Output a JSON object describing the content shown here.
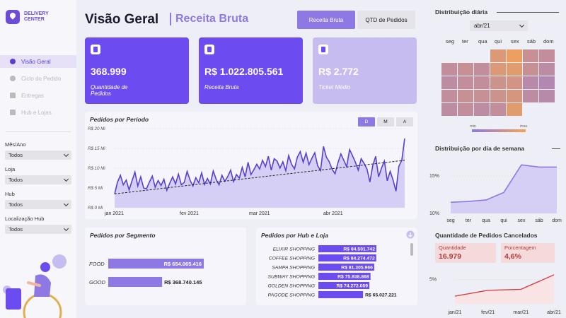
{
  "app": {
    "logo_text": "DELIVERY CENTER"
  },
  "nav": [
    {
      "label": "Visão Geral",
      "active": true
    },
    {
      "label": "Ciclo do Pedido",
      "active": false
    },
    {
      "label": "Entregas",
      "active": false
    },
    {
      "label": "Hub e Lojas",
      "active": false
    }
  ],
  "filters": [
    {
      "label": "Mês/Ano",
      "value": "Todos"
    },
    {
      "label": "Loja",
      "value": "Todos"
    },
    {
      "label": "Hub",
      "value": "Todos"
    },
    {
      "label": "Localização Hub",
      "value": "Todos"
    }
  ],
  "header": {
    "title": "Visão Geral",
    "subtitle": "Receita Bruta",
    "btn_receita": "Receita Bruta",
    "btn_qtd": "QTD de Pedidos"
  },
  "kpis": [
    {
      "value": "368.999",
      "label": "Quantidade de Pedidos"
    },
    {
      "value": "R$ 1.022.805.561",
      "label": "Receita Bruta"
    },
    {
      "value": "R$ 2.772",
      "label": "Ticket Médio"
    }
  ],
  "periodo": {
    "title": "Pedidos por Período",
    "toggles": [
      "D",
      "M",
      "A"
    ],
    "y_ticks": [
      "R$ 20 Mi",
      "R$ 15 Mi",
      "R$ 10 Mi",
      "R$ 5 Mi",
      "R$ 0 Mi"
    ],
    "x_ticks": [
      "jan 2021",
      "fev 2021",
      "mar 2021",
      "abr 2021"
    ]
  },
  "segmento": {
    "title": "Pedidos por Segmento"
  },
  "hub": {
    "title": "Pedidos por Hub e Loja"
  },
  "diaria": {
    "title": "Distribuição diária",
    "month": "abr/21",
    "weekdays": [
      "seg",
      "ter",
      "qua",
      "qui",
      "sex",
      "sáb",
      "dom"
    ],
    "legend_min": "min",
    "legend_max": "max"
  },
  "semana": {
    "title": "Distribuição por dia de semana",
    "y_ticks": [
      "15%",
      "10%"
    ],
    "x_ticks": [
      "seg",
      "ter",
      "qua",
      "qui",
      "sex",
      "sáb",
      "dom"
    ]
  },
  "cancelados": {
    "title": "Quantidade de Pedidos Cancelados",
    "qty_label": "Quantidade",
    "qty_value": "16.979",
    "pct_label": "Porcentagem",
    "pct_value": "4,6%",
    "y_tick": "5%",
    "x_ticks": [
      "jan/21",
      "fev/21",
      "mar/21",
      "abr/21"
    ]
  },
  "chart_data": [
    {
      "type": "area",
      "title": "Pedidos por Período",
      "ylabel": "",
      "xlabel": "",
      "ylim": [
        0,
        20
      ],
      "x_ticks": [
        "jan 2021",
        "fev 2021",
        "mar 2021",
        "abr 2021"
      ],
      "series": [
        {
          "values": [
            3.5,
            6.5,
            8.2,
            5.8,
            7.0,
            4.5,
            6.8,
            9.0,
            5.5,
            7.8,
            5.0,
            4.8,
            6.5,
            8.0,
            5.2,
            6.9,
            5.6,
            7.2,
            4.4,
            6.2,
            7.8,
            6.0,
            8.5,
            5.8,
            6.4,
            9.2,
            7.0,
            5.5,
            7.6,
            6.3,
            8.8,
            5.9,
            7.4,
            6.0,
            9.3,
            7.2,
            5.8,
            8.2,
            6.7,
            7.9,
            9.5,
            6.6,
            8.4,
            7.5,
            10.2,
            7.8,
            11.5,
            8.4,
            9.6,
            11.0,
            9.8,
            12.0,
            10.4,
            13.0,
            9.5,
            12.4,
            11.8,
            10.0,
            11.6,
            9.4,
            13.2,
            11.0,
            9.8,
            12.8,
            14.2,
            11.5,
            13.8,
            10.9,
            12.5,
            13.9,
            10.6,
            9.4,
            15.5,
            12.8,
            11.6,
            9.7,
            8.6,
            11.4,
            13.6,
            12.0,
            10.4,
            14.7,
            13.2,
            11.5,
            9.5,
            12.4,
            11.2,
            9.8,
            6.5,
            10.7,
            13.0,
            7.8,
            10.0,
            11.8,
            6.8,
            9.2,
            7.0,
            4.2,
            10.5,
            12.0,
            17.5
          ]
        }
      ],
      "trend": [
        3.5,
        12.0
      ]
    },
    {
      "type": "bar",
      "title": "Pedidos por Segmento",
      "categories": [
        "FOOD",
        "GOOD"
      ],
      "values": [
        654065416,
        368740145
      ],
      "data_labels": [
        "R$ 654.065.416",
        "R$ 368.740.145"
      ]
    },
    {
      "type": "bar",
      "title": "Pedidos por Hub e Loja",
      "categories": [
        "ELIXIR SHOPPING",
        "COFFEE SHOPPING",
        "SAMPA SHOPPING",
        "SUBWAY SHOPPING",
        "GOLDEN SHOPPING",
        "PAGODE SHOPPING"
      ],
      "values": [
        84501742,
        84274472,
        81305966,
        75938868,
        74272059,
        65027221
      ],
      "data_labels": [
        "R$ 84.501.742",
        "R$ 84.274.472",
        "R$ 81.305.966",
        "R$ 75.938.868",
        "R$ 74.272.059",
        "R$ 65.027.221"
      ]
    },
    {
      "type": "heatmap",
      "title": "Distribuição diária",
      "x": [
        "seg",
        "ter",
        "qua",
        "qui",
        "sex",
        "sáb",
        "dom"
      ],
      "values": [
        [
          null,
          null,
          null,
          0.75,
          0.9,
          0.55,
          0.5
        ],
        [
          0.5,
          0.55,
          0.5,
          0.75,
          0.8,
          0.55,
          0.45
        ],
        [
          0.45,
          0.5,
          0.5,
          0.6,
          0.65,
          0.4,
          0.35
        ],
        [
          0.5,
          0.55,
          0.55,
          0.6,
          0.7,
          0.45,
          0.4
        ],
        [
          0.45,
          0.5,
          0.45,
          0.5,
          0.8,
          null,
          null
        ]
      ]
    },
    {
      "type": "area",
      "title": "Distribuição por dia de semana",
      "x": [
        "seg",
        "ter",
        "qua",
        "qui",
        "sex",
        "sáb",
        "dom"
      ],
      "values": [
        11.5,
        11.6,
        11.8,
        12.8,
        16.5,
        16.2,
        16.2
      ],
      "ylim": [
        10,
        17
      ]
    },
    {
      "type": "line",
      "title": "Quantidade de Pedidos Cancelados",
      "x": [
        "jan/21",
        "fev/21",
        "mar/21",
        "abr/21"
      ],
      "values": [
        3.3,
        3.9,
        4.0,
        5.5
      ],
      "ylim": [
        2.5,
        6
      ]
    }
  ],
  "colors": {
    "accent": "#6c4bf0",
    "accent_light": "#c6bcef",
    "heat_low": "#8e79e4",
    "heat_high": "#f5a352",
    "cancel": "#d04545"
  }
}
